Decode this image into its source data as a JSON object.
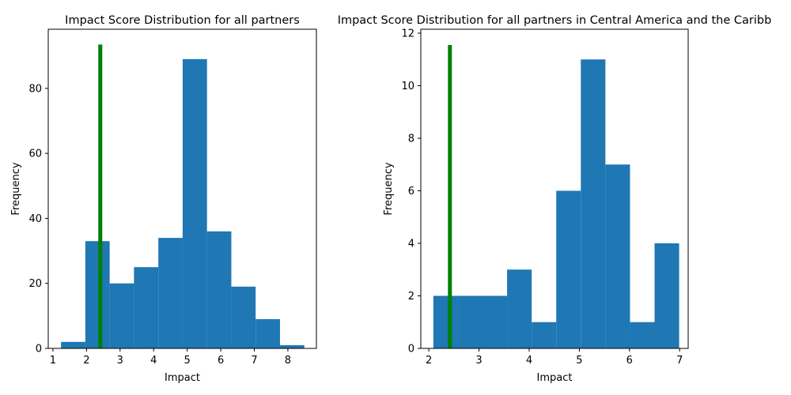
{
  "chart_data": [
    {
      "type": "histogram",
      "title": "Impact Score Distribution for all partners",
      "x_label": "Impact",
      "y_label": "Frequency",
      "bins": [
        1.24,
        1.965,
        2.69,
        3.415,
        4.14,
        4.865,
        5.59,
        6.315,
        7.04,
        7.765,
        8.49
      ],
      "values": [
        2,
        33,
        20,
        25,
        34,
        89,
        36,
        19,
        9,
        1
      ],
      "color": "#1f77b4",
      "vline": {
        "x": 2.41,
        "ymax": 93.5,
        "color": "green"
      },
      "xlim": [
        0.86,
        8.85
      ],
      "xticks": [
        1,
        2,
        3,
        4,
        5,
        6,
        7,
        8
      ],
      "ylim": [
        0,
        98.2
      ],
      "yticks": [
        0,
        20,
        40,
        60,
        80
      ]
    },
    {
      "type": "histogram",
      "title": "Impact Score Distribution for all partners in Central America and the Caribb",
      "x_label": "Impact",
      "y_label": "Frequency",
      "bins": [
        2.09,
        2.58,
        3.07,
        3.56,
        4.05,
        4.54,
        5.03,
        5.52,
        6.01,
        6.5,
        6.99
      ],
      "values": [
        2,
        2,
        2,
        3,
        1,
        6,
        11,
        7,
        1,
        4
      ],
      "color": "#1f77b4",
      "vline": {
        "x": 2.42,
        "ymax": 11.55,
        "color": "green"
      },
      "xlim": [
        1.84,
        7.17
      ],
      "xticks": [
        2,
        3,
        4,
        5,
        6,
        7
      ],
      "ylim": [
        0,
        12.15
      ],
      "yticks": [
        0,
        2,
        4,
        6,
        8,
        10,
        12
      ]
    }
  ]
}
